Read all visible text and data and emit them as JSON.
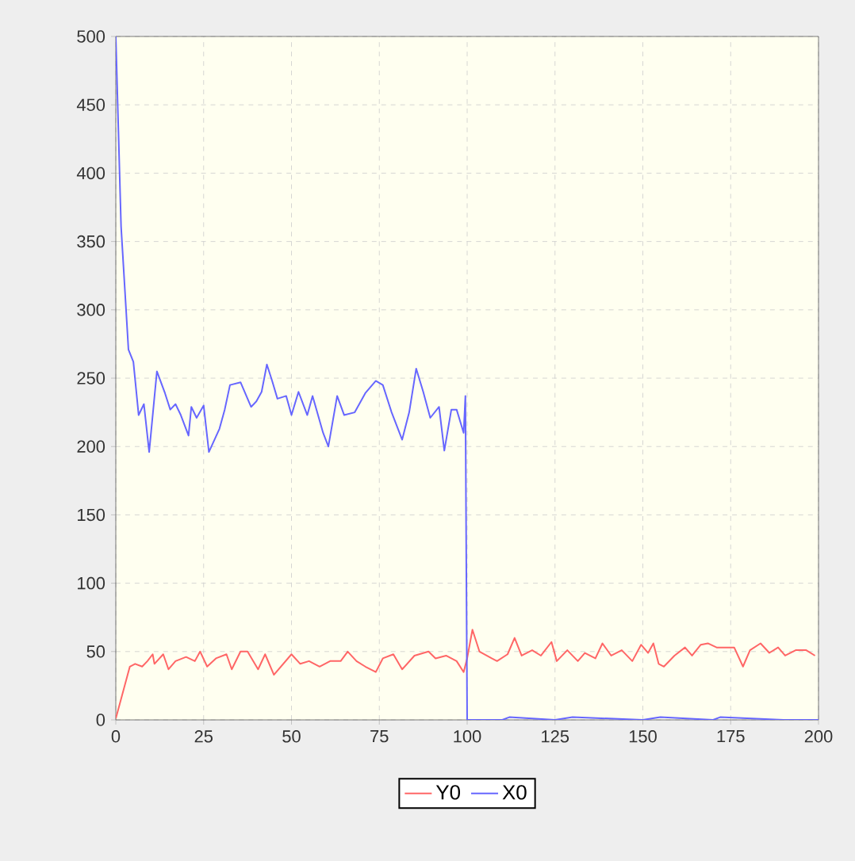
{
  "chart_data": {
    "type": "line",
    "xlim": [
      0,
      200
    ],
    "ylim": [
      0,
      500
    ],
    "xticks": [
      0,
      25,
      50,
      75,
      100,
      125,
      150,
      175,
      200
    ],
    "yticks": [
      0,
      50,
      100,
      150,
      200,
      250,
      300,
      350,
      400,
      450,
      500
    ],
    "grid": true,
    "legend": "bottom",
    "marker": "none",
    "line_style": "solid",
    "series": [
      {
        "name": "Y0",
        "color": "#ff6666",
        "x": [
          0,
          4,
          5.5,
          7.5,
          9,
          10.5,
          11,
          13.5,
          15,
          17,
          20,
          22.5,
          24,
          26,
          28.5,
          31.5,
          33,
          35.5,
          37.5,
          40.5,
          42.5,
          45,
          47,
          50,
          52.5,
          55,
          58,
          61,
          64,
          66,
          68.5,
          71,
          74,
          76,
          79,
          81.5,
          85,
          89,
          91,
          94,
          97,
          99,
          100,
          101.5,
          103.5,
          107,
          108.5,
          111.5,
          113.5,
          115.5,
          118.5,
          121,
          124,
          125.5,
          128.5,
          131.5,
          133.5,
          136.5,
          138.5,
          141,
          144,
          147,
          149.5,
          151.5,
          153,
          154.5,
          156,
          159,
          162,
          164,
          166.5,
          168.5,
          171,
          174.5,
          176,
          178.5,
          180.5,
          183.5,
          186,
          188.5,
          190.5,
          193.5,
          196.5,
          199
        ],
        "values": [
          1,
          39,
          41,
          39,
          43,
          48,
          41,
          48,
          37,
          43,
          46,
          43,
          50,
          39,
          45,
          48,
          37,
          50,
          50,
          37,
          48,
          33,
          39,
          48,
          41,
          43,
          39,
          43,
          43,
          50,
          43,
          39,
          35,
          45,
          48,
          37,
          47,
          50,
          45,
          47,
          43,
          35,
          45,
          66,
          50,
          45,
          43,
          48,
          60,
          47,
          51,
          47,
          57,
          43,
          51,
          43,
          49,
          45,
          56,
          47,
          51,
          43,
          55,
          49,
          56,
          41,
          39,
          47,
          53,
          47,
          55,
          56,
          53,
          53,
          53,
          39,
          51,
          56,
          49,
          53,
          47,
          51,
          51,
          47
        ]
      },
      {
        "name": "X0",
        "color": "#6666ff",
        "x": [
          0,
          1.5,
          3.6,
          5,
          6.5,
          8,
          9.5,
          11.7,
          14,
          15.5,
          17,
          18.5,
          20.7,
          21.5,
          23,
          25,
          26.5,
          29.5,
          31,
          32.5,
          35.5,
          38.5,
          40,
          41.5,
          43,
          44.5,
          46,
          48.5,
          50,
          52,
          54.5,
          56,
          59,
          60.5,
          63,
          65,
          68,
          71,
          74,
          76,
          78.5,
          81.5,
          83.5,
          85.5,
          87.5,
          89.5,
          92,
          93.5,
          95.5,
          97,
          99,
          99.5,
          100,
          110,
          112,
          125,
          130,
          150,
          155,
          170,
          172,
          190,
          200
        ],
        "values": [
          500,
          361,
          271,
          262,
          223,
          231,
          196,
          255,
          239,
          227,
          231,
          223,
          208,
          229,
          221,
          230,
          196,
          213,
          227,
          245,
          247,
          229,
          233,
          240,
          260,
          248,
          235,
          237,
          223,
          240,
          223,
          237,
          210,
          200,
          237,
          223,
          225,
          239,
          248,
          245,
          225,
          205,
          225,
          257,
          240,
          221,
          229,
          197,
          227,
          227,
          210,
          237,
          0,
          0,
          2,
          0,
          2,
          0,
          2,
          0,
          2,
          0,
          0
        ]
      }
    ]
  }
}
